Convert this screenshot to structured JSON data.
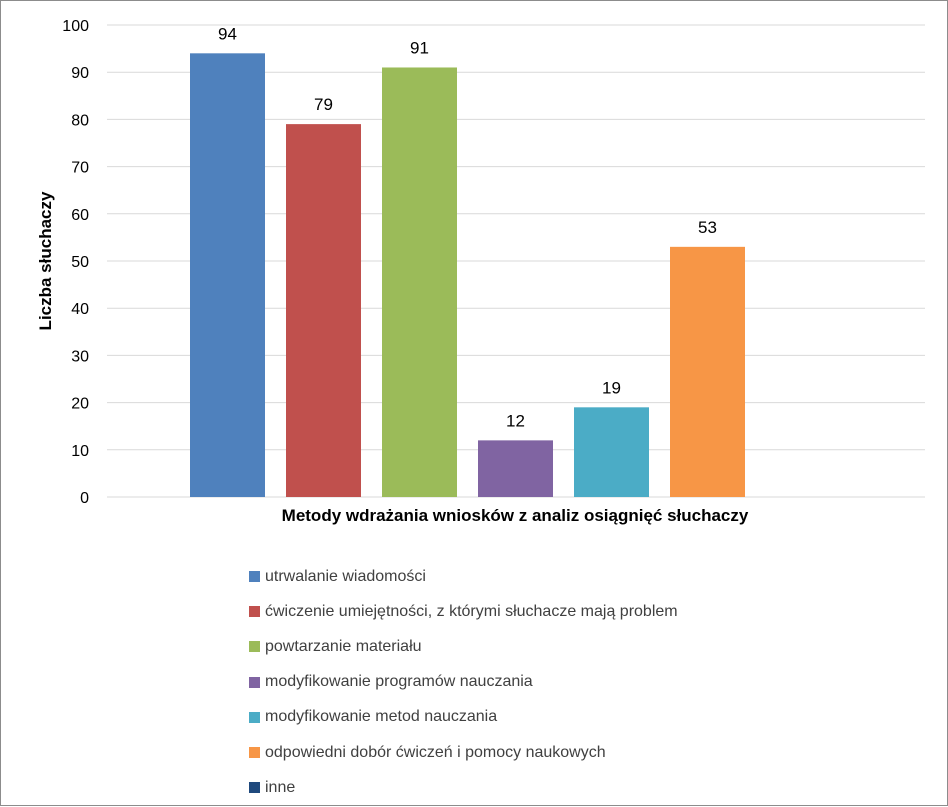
{
  "chart_data": {
    "type": "bar",
    "categories": [
      "utrwalanie wiadomości",
      "ćwiczenie umiejętności,  z którymi słuchacze mają problem",
      "powtarzanie materiału",
      "modyfikowanie programów nauczania",
      "modyfikowanie metod nauczania",
      "odpowiedni dobór ćwiczeń i pomocy naukowych",
      "inne"
    ],
    "values": [
      94,
      79,
      91,
      12,
      19,
      53,
      null
    ],
    "colors": [
      "#4f81bd",
      "#c0504d",
      "#9bbb59",
      "#8064a2",
      "#4bacc6",
      "#f79646",
      "#1f497d"
    ],
    "data_labels": [
      "94",
      "79",
      "91",
      "12",
      "19",
      "53",
      ""
    ],
    "ylabel": "Liczba słuchaczy",
    "xlabel": "Metody wdrażania wniosków z analiz osiągnięć słuchaczy",
    "ylim": [
      0,
      100
    ],
    "yticks": [
      "0",
      "10",
      "20",
      "30",
      "40",
      "50",
      "60",
      "70",
      "80",
      "90",
      "100"
    ],
    "grid": true,
    "legend_position": "bottom"
  }
}
